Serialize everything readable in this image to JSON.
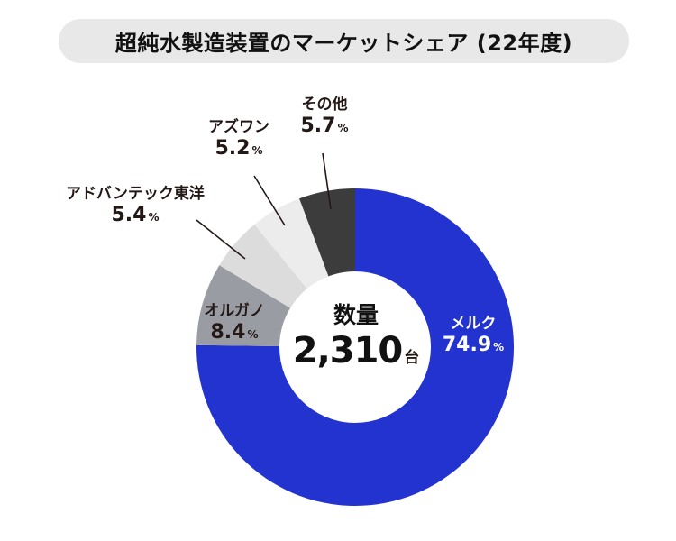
{
  "title": "超純水製造装置のマーケットシェア (22年度)",
  "center": {
    "label": "数量",
    "value": "2,310",
    "unit": "台"
  },
  "labels": [
    {
      "name": "メルク",
      "value": "74.9",
      "pct": "%"
    },
    {
      "name": "オルガノ",
      "value": "8.4",
      "pct": "%"
    },
    {
      "name": "アドバンテック東洋",
      "value": "5.4",
      "pct": "%"
    },
    {
      "name": "アズワン",
      "value": "5.2",
      "pct": "%"
    },
    {
      "name": "その他",
      "value": "5.7",
      "pct": "%"
    }
  ],
  "chart_data": {
    "type": "pie",
    "subtype": "donut",
    "title": "超純水製造装置のマーケットシェア (22年度)",
    "center_text": "数量 2,310台",
    "categories": [
      "メルク",
      "オルガノ",
      "アドバンテック東洋",
      "アズワン",
      "その他"
    ],
    "values": [
      74.9,
      8.4,
      5.4,
      5.2,
      5.7
    ],
    "unit": "%",
    "colors": [
      "#2333cf",
      "#9a9ca3",
      "#dcdcdc",
      "#ececec",
      "#3c3c3c"
    ],
    "start_angle": "12 o'clock",
    "direction": "clockwise",
    "legend": "none (direct labels)"
  }
}
